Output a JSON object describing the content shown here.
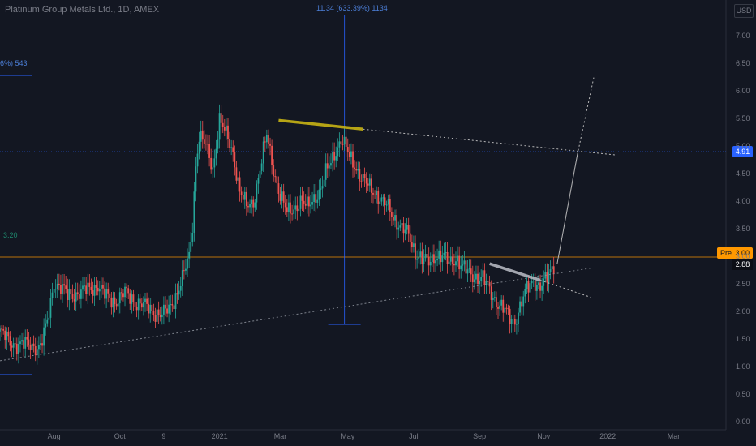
{
  "header": {
    "title": "Platinum Group Metals Ltd., 1D, AMEX",
    "currency": "USD"
  },
  "annotations": {
    "top_measure": "11.34 (633.39%) 1134",
    "left_measure": "6%) 543",
    "level_label": "3.20"
  },
  "price_tags": {
    "last": "4.91",
    "pre_label": "Pre",
    "pre_value": "3.00",
    "close": "2.88"
  },
  "colors": {
    "background": "#131722",
    "up": "#26a69a",
    "down": "#ef5350",
    "measure": "#2962ff",
    "resistance_yellow": "#c8b414",
    "resistance_grey": "#b2b5be",
    "pre_tag": "#ff9800"
  },
  "chart_data": {
    "type": "candlestick",
    "title": "Platinum Group Metals Ltd., 1D, AMEX",
    "ylim": [
      0,
      7.3
    ],
    "y_ticks": [
      "7.00",
      "6.50",
      "6.00",
      "5.50",
      "5.00",
      "4.50",
      "4.00",
      "3.50",
      "3.00",
      "2.50",
      "2.00",
      "1.50",
      "1.00",
      "0.50",
      "0.00"
    ],
    "x_ticks": [
      "Aug",
      "Oct",
      "9",
      "2021",
      "Mar",
      "May",
      "Jul",
      "Sep",
      "Nov",
      "2022",
      "Mar"
    ],
    "x_tick_index": [
      32,
      71,
      97,
      130,
      166,
      206,
      245,
      284,
      322,
      360,
      399
    ],
    "close_path": [
      [
        0,
        1.65
      ],
      [
        6,
        1.45
      ],
      [
        12,
        1.42
      ],
      [
        18,
        1.4
      ],
      [
        24,
        1.38
      ],
      [
        28,
        1.8
      ],
      [
        32,
        2.55
      ],
      [
        36,
        2.45
      ],
      [
        40,
        2.3
      ],
      [
        46,
        2.35
      ],
      [
        52,
        2.4
      ],
      [
        58,
        2.5
      ],
      [
        62,
        2.3
      ],
      [
        68,
        2.2
      ],
      [
        74,
        2.35
      ],
      [
        80,
        2.2
      ],
      [
        86,
        2.1
      ],
      [
        92,
        2.0
      ],
      [
        96,
        1.95
      ],
      [
        100,
        2.05
      ],
      [
        104,
        2.3
      ],
      [
        108,
        2.6
      ],
      [
        112,
        3.0
      ],
      [
        114,
        3.6
      ],
      [
        116,
        4.7
      ],
      [
        118,
        5.2
      ],
      [
        122,
        5.0
      ],
      [
        126,
        4.6
      ],
      [
        130,
        5.5
      ],
      [
        134,
        5.2
      ],
      [
        138,
        4.9
      ],
      [
        142,
        4.2
      ],
      [
        146,
        3.9
      ],
      [
        150,
        4.0
      ],
      [
        154,
        4.6
      ],
      [
        158,
        5.2
      ],
      [
        162,
        4.6
      ],
      [
        166,
        4.1
      ],
      [
        170,
        3.8
      ],
      [
        174,
        3.9
      ],
      [
        178,
        4.0
      ],
      [
        182,
        3.9
      ],
      [
        186,
        4.1
      ],
      [
        190,
        4.2
      ],
      [
        194,
        4.6
      ],
      [
        198,
        4.9
      ],
      [
        202,
        5.1
      ],
      [
        206,
        4.9
      ],
      [
        210,
        4.7
      ],
      [
        214,
        4.4
      ],
      [
        218,
        4.3
      ],
      [
        222,
        4.2
      ],
      [
        226,
        4.0
      ],
      [
        230,
        3.9
      ],
      [
        234,
        3.7
      ],
      [
        238,
        3.5
      ],
      [
        242,
        3.4
      ],
      [
        246,
        3.1
      ],
      [
        250,
        2.95
      ],
      [
        254,
        2.9
      ],
      [
        258,
        3.05
      ],
      [
        262,
        3.0
      ],
      [
        266,
        2.9
      ],
      [
        270,
        3.0
      ],
      [
        274,
        2.8
      ],
      [
        278,
        2.7
      ],
      [
        282,
        2.65
      ],
      [
        286,
        2.6
      ],
      [
        290,
        2.4
      ],
      [
        294,
        2.2
      ],
      [
        298,
        2.05
      ],
      [
        302,
        1.9
      ],
      [
        305,
        1.85
      ],
      [
        308,
        2.1
      ],
      [
        312,
        2.4
      ],
      [
        316,
        2.6
      ],
      [
        320,
        2.45
      ],
      [
        324,
        2.6
      ],
      [
        328,
        2.88
      ]
    ],
    "lines": [
      {
        "name": "long-support",
        "style": "dotted",
        "color": "#8a8f99",
        "points": [
          [
            0,
            1.12
          ],
          [
            350,
            2.8
          ]
        ]
      },
      {
        "name": "resistance-upper",
        "style": "solid",
        "color": "#c8b414",
        "points": [
          [
            165,
            5.48
          ],
          [
            215,
            5.32
          ]
        ]
      },
      {
        "name": "resistance-upper-ext",
        "style": "dotted",
        "color": "#c8c8c8",
        "points": [
          [
            215,
            5.32
          ],
          [
            365,
            4.85
          ]
        ]
      },
      {
        "name": "resistance-lower",
        "style": "solid",
        "color": "#b2b5be",
        "points": [
          [
            290,
            2.88
          ],
          [
            320,
            2.58
          ]
        ]
      },
      {
        "name": "resistance-lower-ext",
        "style": "dotted",
        "color": "#c8c8c8",
        "points": [
          [
            320,
            2.58
          ],
          [
            350,
            2.27
          ]
        ]
      },
      {
        "name": "projection",
        "style": "solid",
        "color": "#c8c8c8",
        "points": [
          [
            330,
            2.88
          ],
          [
            342,
            4.86
          ]
        ]
      },
      {
        "name": "projection-ext",
        "style": "dotted",
        "color": "#c8c8c8",
        "points": [
          [
            342,
            4.86
          ],
          [
            352,
            6.3
          ]
        ]
      }
    ],
    "horizontal_levels": [
      {
        "name": "level-4.91",
        "value": 4.91,
        "color": "#2962ff",
        "style": "dotted"
      },
      {
        "name": "level-3.00",
        "value": 3.0,
        "color": "#ff9800",
        "style": "solid"
      }
    ],
    "measure_index": 204,
    "x_domain": [
      0,
      430
    ]
  }
}
